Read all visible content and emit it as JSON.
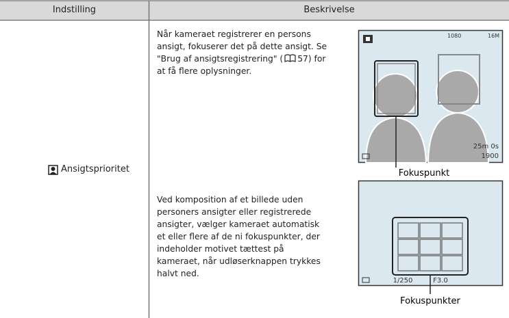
{
  "table": {
    "header": [
      "Indstilling",
      "Beskrivelse"
    ],
    "setting": "Ansigtsprioritet",
    "paragraph_1": [
      "Når kameraet registrerer en persons",
      "ansigt, fokuserer det på dette ansigt. Se",
      "\"Brug af ansigtsregistrering\" (",
      "57) for",
      "at få flere oplysninger."
    ],
    "paragraph_2": [
      "Ved komposition af et billede uden",
      "personers ansigter eller registrerede",
      "ansigter, vælger kameraet automatisk",
      "et eller flere af de ni fokuspunkter, der",
      "indeholder motivet tættest på",
      "kameraet, når udløserknappen trykkes",
      "halvt ned."
    ],
    "screen_1": {
      "top_1": "1080",
      "top_2": "16M",
      "time": "25m 0s",
      "count": "1900",
      "caption": "Fokuspunkt"
    },
    "screen_2": {
      "shutter": "1/250",
      "aperture": "F3.0",
      "caption": "Fokuspunkter"
    }
  }
}
